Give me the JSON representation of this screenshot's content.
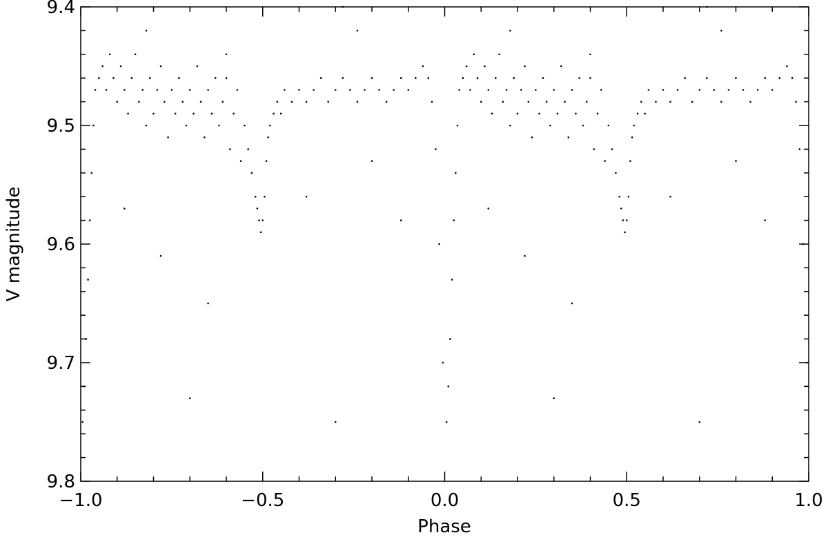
{
  "chart_data": {
    "type": "scatter",
    "x_label": "Phase",
    "y_label": "V magnitude",
    "xlim": [
      -1.0,
      1.0
    ],
    "ylim": [
      9.4,
      9.8
    ],
    "y_inverted": true,
    "xticks": [
      {
        "value": -1.0,
        "label": "−1.0"
      },
      {
        "value": -0.5,
        "label": "−0.5"
      },
      {
        "value": 0,
        "label": "0.0"
      },
      0.5,
      {
        "value": 1,
        "label": "1.0"
      }
    ],
    "yticks": [
      9.4,
      9.5,
      9.6,
      9.7,
      9.8
    ],
    "xminorticks": [
      -0.9,
      -0.8,
      -0.7,
      -0.6,
      -0.4,
      -0.3,
      -0.2,
      -0.1,
      0.1,
      0.2,
      0.3,
      0.4,
      0.6,
      0.7,
      0.8,
      0.9
    ],
    "yminorticks": [
      9.42,
      9.44,
      9.46,
      9.48,
      9.52,
      9.54,
      9.56,
      9.58,
      9.62,
      9.64,
      9.66,
      9.68,
      9.72,
      9.74,
      9.76,
      9.78
    ],
    "series": [
      {
        "color": "#000000",
        "x": [
          0.005,
          0.01,
          0.015,
          0.02,
          0.025,
          0.03,
          0.035,
          0.04,
          0.05,
          0.06,
          0.07,
          0.08,
          0.09,
          0.1,
          0.11,
          0.12,
          0.13,
          0.14,
          0.15,
          0.16,
          0.17,
          0.18,
          0.19,
          0.2,
          0.21,
          0.22,
          0.23,
          0.24,
          0.25,
          0.26,
          0.27,
          0.28,
          0.29,
          0.3,
          0.31,
          0.32,
          0.33,
          0.34,
          0.35,
          0.36,
          0.37,
          0.38,
          0.39,
          0.4,
          0.41,
          0.42,
          0.43,
          0.44,
          0.45,
          0.46,
          0.47,
          0.48,
          0.485,
          0.49,
          0.495,
          0.5,
          0.505,
          0.51,
          0.515,
          0.52,
          0.53,
          0.54,
          0.55,
          0.56,
          0.58,
          0.6,
          0.62,
          0.64,
          0.66,
          0.68,
          0.7,
          0.72,
          0.74,
          0.76,
          0.78,
          0.8,
          0.82,
          0.84,
          0.86,
          0.88,
          0.9,
          0.92,
          0.94,
          0.955,
          0.965,
          0.975,
          0.985,
          0.995,
          0.12,
          0.22,
          0.3,
          0.35,
          0.62,
          0.7,
          0.8,
          0.88,
          0.18,
          0.72,
          0.76,
          0.4,
          -0.995,
          -0.99,
          -0.985,
          -0.98,
          -0.975,
          -0.97,
          -0.965,
          -0.96,
          -0.95,
          -0.94,
          -0.93,
          -0.92,
          -0.91,
          -0.9,
          -0.89,
          -0.88,
          -0.87,
          -0.86,
          -0.85,
          -0.84,
          -0.83,
          -0.82,
          -0.81,
          -0.8,
          -0.79,
          -0.78,
          -0.77,
          -0.76,
          -0.75,
          -0.74,
          -0.73,
          -0.72,
          -0.71,
          -0.7,
          -0.69,
          -0.68,
          -0.67,
          -0.66,
          -0.65,
          -0.64,
          -0.63,
          -0.62,
          -0.61,
          -0.6,
          -0.59,
          -0.58,
          -0.57,
          -0.56,
          -0.55,
          -0.54,
          -0.53,
          -0.52,
          -0.515,
          -0.51,
          -0.505,
          -0.5,
          -0.495,
          -0.49,
          -0.485,
          -0.48,
          -0.47,
          -0.46,
          -0.45,
          -0.44,
          -0.42,
          -0.4,
          -0.38,
          -0.36,
          -0.34,
          -0.32,
          -0.3,
          -0.28,
          -0.26,
          -0.24,
          -0.22,
          -0.2,
          -0.18,
          -0.16,
          -0.14,
          -0.12,
          -0.1,
          -0.08,
          -0.06,
          -0.045,
          -0.035,
          -0.025,
          -0.015,
          -0.005,
          -0.88,
          -0.78,
          -0.7,
          -0.65,
          -0.38,
          -0.3,
          -0.2,
          -0.12,
          -0.82,
          -0.28,
          -0.24,
          -0.6
        ],
        "values": [
          9.75,
          9.72,
          9.68,
          9.63,
          9.58,
          9.54,
          9.5,
          9.47,
          9.46,
          9.45,
          9.47,
          9.44,
          9.46,
          9.48,
          9.45,
          9.47,
          9.49,
          9.46,
          9.44,
          9.48,
          9.47,
          9.5,
          9.46,
          9.49,
          9.47,
          9.45,
          9.48,
          9.51,
          9.47,
          9.49,
          9.46,
          9.48,
          9.5,
          9.47,
          9.49,
          9.45,
          9.48,
          9.51,
          9.47,
          9.49,
          9.46,
          9.5,
          9.48,
          9.46,
          9.52,
          9.49,
          9.47,
          9.53,
          9.5,
          9.52,
          9.54,
          9.56,
          9.57,
          9.58,
          9.59,
          9.58,
          9.56,
          9.53,
          9.51,
          9.5,
          9.49,
          9.48,
          9.49,
          9.47,
          9.48,
          9.47,
          9.48,
          9.47,
          9.46,
          9.48,
          9.47,
          9.46,
          9.47,
          9.48,
          9.47,
          9.46,
          9.47,
          9.48,
          9.47,
          9.46,
          9.47,
          9.46,
          9.45,
          9.46,
          9.48,
          9.52,
          9.6,
          9.7,
          9.57,
          9.61,
          9.73,
          9.65,
          9.56,
          9.75,
          9.53,
          9.58,
          9.42,
          9.4,
          9.42,
          9.44,
          9.75,
          9.72,
          9.68,
          9.63,
          9.58,
          9.54,
          9.5,
          9.47,
          9.46,
          9.45,
          9.47,
          9.44,
          9.46,
          9.48,
          9.45,
          9.47,
          9.49,
          9.46,
          9.44,
          9.48,
          9.47,
          9.5,
          9.46,
          9.49,
          9.47,
          9.45,
          9.48,
          9.51,
          9.47,
          9.49,
          9.46,
          9.48,
          9.5,
          9.47,
          9.49,
          9.45,
          9.48,
          9.51,
          9.47,
          9.49,
          9.46,
          9.5,
          9.48,
          9.46,
          9.52,
          9.49,
          9.47,
          9.53,
          9.5,
          9.52,
          9.54,
          9.56,
          9.57,
          9.58,
          9.59,
          9.58,
          9.56,
          9.53,
          9.51,
          9.5,
          9.49,
          9.48,
          9.49,
          9.47,
          9.48,
          9.47,
          9.48,
          9.47,
          9.46,
          9.48,
          9.47,
          9.46,
          9.47,
          9.48,
          9.47,
          9.46,
          9.47,
          9.48,
          9.47,
          9.46,
          9.47,
          9.46,
          9.45,
          9.46,
          9.48,
          9.52,
          9.6,
          9.7,
          9.57,
          9.61,
          9.73,
          9.65,
          9.56,
          9.75,
          9.53,
          9.58,
          9.42,
          9.4,
          9.42,
          9.44
        ]
      }
    ]
  }
}
